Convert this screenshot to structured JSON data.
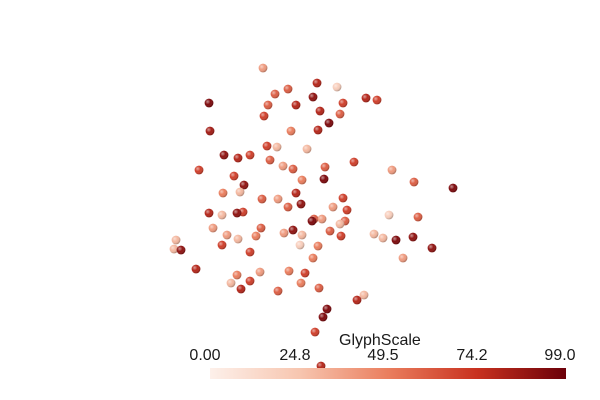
{
  "scalar_bar": {
    "title": "GlyphScale",
    "ticks": [
      "0.00",
      "24.8",
      "49.5",
      "74.2",
      "99.0"
    ],
    "range": [
      0,
      99
    ],
    "colormap": [
      "#fdf0ea",
      "#f7c6b0",
      "#ea7e5e",
      "#c8311f",
      "#6b0009"
    ]
  }
}
